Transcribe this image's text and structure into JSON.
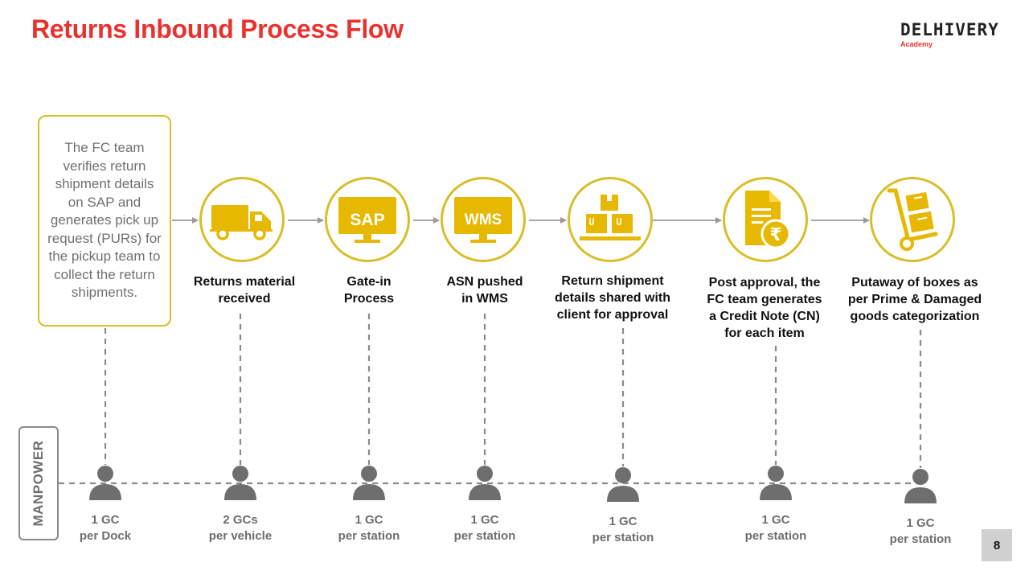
{
  "title": "Returns Inbound Process Flow",
  "logo": {
    "brand": "DELHIVERY",
    "sub": "Academy"
  },
  "intro_text": "The FC team verifies return shipment details on SAP and generates pick up request (PURs) for the pickup team to collect the return shipments.",
  "steps": [
    {
      "icon": "truck-icon",
      "label_lines": [
        "Returns material",
        "received"
      ]
    },
    {
      "icon": "sap-monitor-icon",
      "badge": "SAP",
      "label_lines": [
        "Gate-in",
        "Process"
      ]
    },
    {
      "icon": "wms-monitor-icon",
      "badge": "WMS",
      "label_lines": [
        "ASN pushed",
        "in WMS"
      ]
    },
    {
      "icon": "boxes-icon",
      "label_lines": [
        "Return shipment",
        "details shared with",
        "client for approval"
      ]
    },
    {
      "icon": "credit-note-icon",
      "label_lines": [
        "Post approval, the",
        "FC team generates",
        "a Credit Note (CN)",
        "for each item"
      ]
    },
    {
      "icon": "hand-truck-icon",
      "label_lines": [
        "Putaway of boxes as",
        "per Prime & Damaged",
        "goods categorization"
      ]
    }
  ],
  "manpower_label": "MANPOWER",
  "manpower": [
    {
      "count": "1 GC",
      "unit": "per Dock"
    },
    {
      "count": "2 GCs",
      "unit": "per vehicle"
    },
    {
      "count": "1 GC",
      "unit": "per station"
    },
    {
      "count": "1 GC",
      "unit": "per station"
    },
    {
      "count": "1 GC",
      "unit": "per station"
    },
    {
      "count": "1 GC",
      "unit": "per station"
    },
    {
      "count": "1 GC",
      "unit": "per station"
    }
  ],
  "page_number": "8",
  "colors": {
    "accent_red": "#e8322f",
    "gold": "#e6b800",
    "ring": "#d8be28",
    "grey": "#6e6e6e"
  }
}
